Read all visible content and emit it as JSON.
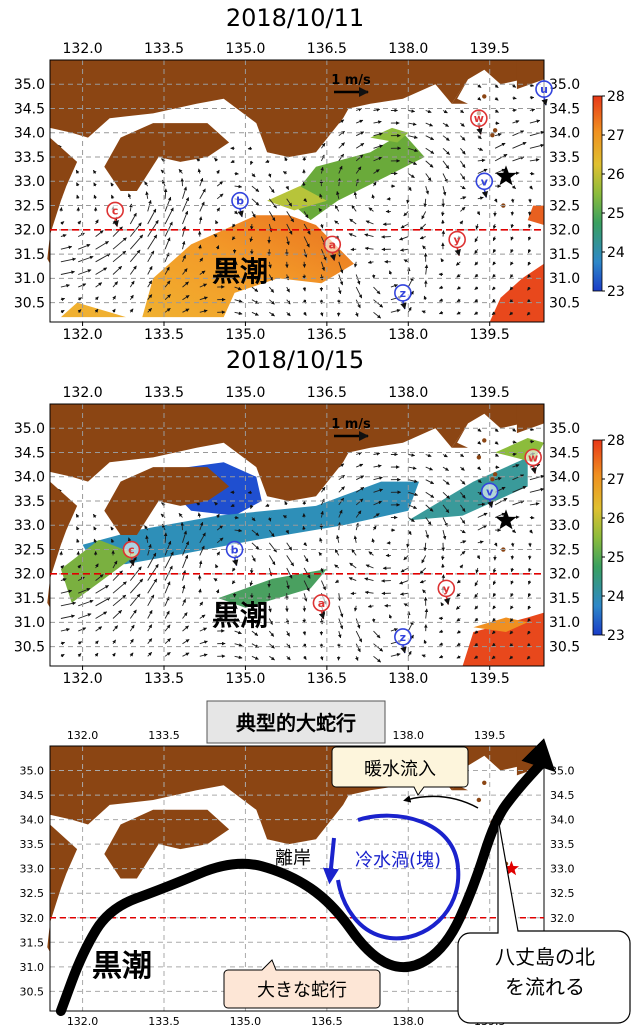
{
  "chart_data": [
    {
      "type": "heatmap",
      "title": "2018/10/11",
      "x_ticks": [
        "132.0",
        "133.5",
        "135.0",
        "136.5",
        "138.0",
        "139.5"
      ],
      "y_ticks": [
        "35.0",
        "34.5",
        "34.0",
        "33.5",
        "33.0",
        "32.5",
        "32.0",
        "31.5",
        "31.0",
        "30.5"
      ],
      "xlim": [
        131.4,
        140.5
      ],
      "ylim": [
        30.1,
        35.5
      ],
      "colorbar": {
        "min": 23,
        "max": 28,
        "ticks": [
          "28",
          "27",
          "26",
          "25",
          "24",
          "23"
        ]
      },
      "reference_vector": "1 m/s",
      "reference_latitude": 32.0,
      "annotation": "黒潮",
      "star": {
        "lon": 139.8,
        "lat": 33.1
      },
      "eddies": [
        {
          "label": "c",
          "lon": 132.6,
          "lat": 32.4,
          "color": "#dd3333"
        },
        {
          "label": "b",
          "lon": 134.9,
          "lat": 32.6,
          "color": "#3344dd"
        },
        {
          "label": "a",
          "lon": 136.6,
          "lat": 31.7,
          "color": "#dd3333"
        },
        {
          "label": "y",
          "lon": 138.9,
          "lat": 31.8,
          "color": "#dd3333"
        },
        {
          "label": "z",
          "lon": 137.9,
          "lat": 30.7,
          "color": "#3344dd"
        },
        {
          "label": "w",
          "lon": 139.3,
          "lat": 34.3,
          "color": "#dd3333"
        },
        {
          "label": "v",
          "lon": 139.4,
          "lat": 33.0,
          "color": "#3344dd"
        },
        {
          "label": "u",
          "lon": 140.5,
          "lat": 34.9,
          "color": "#3344dd"
        }
      ]
    },
    {
      "type": "heatmap",
      "title": "2018/10/15",
      "x_ticks": [
        "132.0",
        "133.5",
        "135.0",
        "136.5",
        "138.0",
        "139.5"
      ],
      "y_ticks": [
        "35.0",
        "34.5",
        "34.0",
        "33.5",
        "33.0",
        "32.5",
        "32.0",
        "31.5",
        "31.0",
        "30.5"
      ],
      "xlim": [
        131.4,
        140.5
      ],
      "ylim": [
        30.1,
        35.5
      ],
      "colorbar": {
        "min": 23,
        "max": 28,
        "ticks": [
          "28",
          "27",
          "26",
          "25",
          "24",
          "23"
        ]
      },
      "reference_vector": "1 m/s",
      "reference_latitude": 32.0,
      "annotation": "黒潮",
      "star": {
        "lon": 139.8,
        "lat": 33.1
      },
      "eddies": [
        {
          "label": "c",
          "lon": 132.9,
          "lat": 32.5,
          "color": "#dd3333"
        },
        {
          "label": "b",
          "lon": 134.8,
          "lat": 32.5,
          "color": "#3344dd"
        },
        {
          "label": "a",
          "lon": 136.4,
          "lat": 31.4,
          "color": "#dd3333"
        },
        {
          "label": "y",
          "lon": 138.7,
          "lat": 31.7,
          "color": "#dd3333"
        },
        {
          "label": "z",
          "lon": 137.9,
          "lat": 30.7,
          "color": "#3344dd"
        },
        {
          "label": "v",
          "lon": 139.5,
          "lat": 33.7,
          "color": "#3344dd"
        },
        {
          "label": "w",
          "lon": 140.3,
          "lat": 34.4,
          "color": "#dd3333"
        }
      ]
    },
    {
      "type": "line",
      "title": "典型的大蛇行",
      "x_ticks": [
        "132.0",
        "133.5",
        "135.0",
        "136.5",
        "138.0",
        "139.5"
      ],
      "y_ticks": [
        "35.0",
        "34.5",
        "34.0",
        "33.5",
        "33.0",
        "32.5",
        "32.0",
        "31.5",
        "31.0",
        "30.5"
      ],
      "xlim": [
        131.4,
        140.5
      ],
      "ylim": [
        30.1,
        35.5
      ],
      "reference_latitude": 32.0,
      "star": {
        "lon": 139.9,
        "lat": 33.0
      },
      "kuroshio_path": [
        [
          131.6,
          30.1
        ],
        [
          132.0,
          31.3
        ],
        [
          132.5,
          32.2
        ],
        [
          133.5,
          32.6
        ],
        [
          134.8,
          33.2
        ],
        [
          135.8,
          32.9
        ],
        [
          136.6,
          32.3
        ],
        [
          137.3,
          31.2
        ],
        [
          138.0,
          30.9
        ],
        [
          138.7,
          31.4
        ],
        [
          139.2,
          32.6
        ],
        [
          139.6,
          34.0
        ],
        [
          140.0,
          34.6
        ],
        [
          140.5,
          35.2
        ]
      ],
      "cold_eddy_label": "冷水渦(塊)",
      "labels": {
        "kuroshio": "黒潮",
        "detach": "離岸",
        "warm_inflow": "暖水流入",
        "meander": "大きな蛇行",
        "hachijo": [
          "八丈島の北",
          "を流れる"
        ]
      }
    }
  ]
}
